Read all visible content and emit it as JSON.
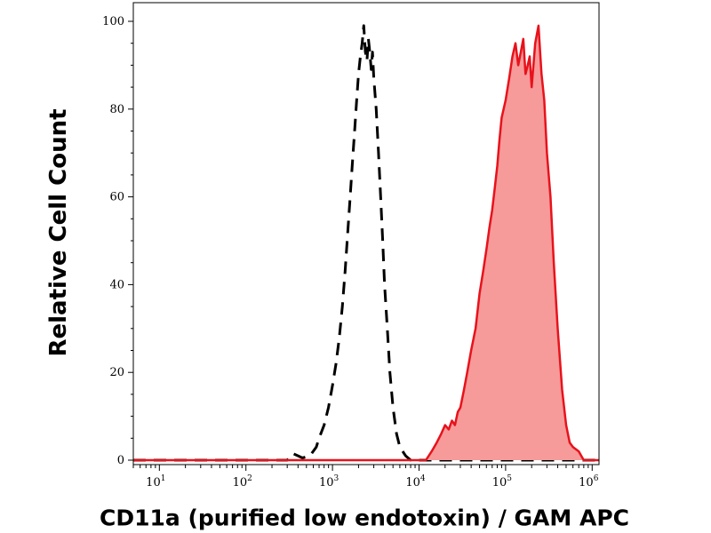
{
  "chart_data": {
    "type": "area",
    "title": "",
    "xlabel": "CD11a (purified low endotoxin) / GAM APC",
    "ylabel": "Relative Cell Count",
    "x_scale": "log",
    "xlim": [
      5,
      1200000
    ],
    "ylim": [
      0,
      100
    ],
    "x_ticks": [
      {
        "base": "10",
        "exp": "1",
        "value": 10
      },
      {
        "base": "10",
        "exp": "2",
        "value": 100
      },
      {
        "base": "10",
        "exp": "3",
        "value": 1000
      },
      {
        "base": "10",
        "exp": "4",
        "value": 10000
      },
      {
        "base": "10",
        "exp": "5",
        "value": 100000
      },
      {
        "base": "10",
        "exp": "6",
        "value": 1000000
      }
    ],
    "y_ticks": [
      "0",
      "20",
      "40",
      "60",
      "80",
      "100"
    ],
    "grid": false,
    "series": [
      {
        "style": "dashed-line",
        "color": "#000000",
        "x": [
          5,
          300,
          350,
          400,
          450,
          550,
          650,
          700,
          800,
          900,
          1000,
          1100,
          1200,
          1300,
          1400,
          1500,
          1600,
          1700,
          1800,
          1900,
          2000,
          2100,
          2200,
          2300,
          2400,
          2500,
          2600,
          2700,
          2800,
          2900,
          3000,
          3200,
          3400,
          3600,
          3800,
          4000,
          4300,
          4600,
          5000,
          5500,
          6000,
          7000,
          8000,
          12000,
          1200000
        ],
        "values": [
          0,
          0,
          1.5,
          1,
          0.5,
          1,
          3,
          5,
          8,
          12,
          17,
          22,
          28,
          35,
          43,
          52,
          60,
          68,
          75,
          82,
          88,
          92,
          95,
          99,
          93,
          91,
          96,
          93,
          89,
          93,
          87,
          80,
          70,
          60,
          50,
          40,
          30,
          20,
          12,
          6,
          3,
          1,
          0,
          0,
          0
        ]
      },
      {
        "style": "filled-area",
        "color": "#e8121b",
        "fill": "#f79a9a",
        "x": [
          5,
          12000,
          14000,
          16000,
          18000,
          20000,
          22000,
          24000,
          26000,
          28000,
          30000,
          33000,
          36000,
          40000,
          45000,
          50000,
          55000,
          60000,
          65000,
          70000,
          75000,
          80000,
          85000,
          90000,
          100000,
          110000,
          120000,
          130000,
          140000,
          150000,
          160000,
          170000,
          180000,
          190000,
          200000,
          220000,
          240000,
          260000,
          280000,
          300000,
          330000,
          360000,
          400000,
          450000,
          500000,
          550000,
          600000,
          700000,
          800000,
          1200000
        ],
        "values": [
          0,
          0,
          2,
          4,
          6,
          8,
          7,
          9,
          8,
          11,
          12,
          16,
          20,
          25,
          30,
          38,
          43,
          48,
          53,
          57,
          62,
          67,
          73,
          78,
          82,
          87,
          92,
          95,
          90,
          93,
          96,
          88,
          90,
          92,
          85,
          95,
          99,
          88,
          82,
          70,
          60,
          45,
          30,
          16,
          8,
          4,
          3,
          2,
          0,
          0
        ]
      }
    ]
  }
}
